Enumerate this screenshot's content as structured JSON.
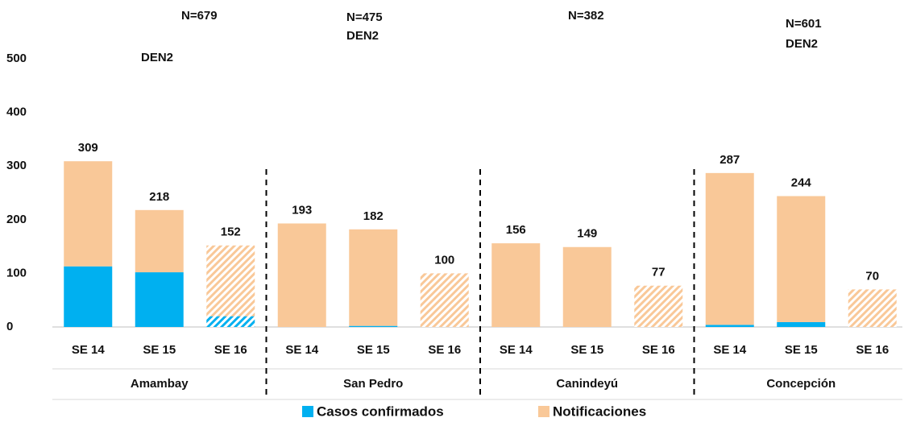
{
  "chart_data": {
    "type": "stacked_bar",
    "categories": [
      "SE 14",
      "SE 15",
      "SE 16",
      "SE 14",
      "SE 15",
      "SE 16",
      "SE 14",
      "SE 15",
      "SE 16",
      "SE 14",
      "SE 15",
      "SE 16"
    ],
    "groups": [
      {
        "name": "Amambay",
        "n": "N=679",
        "note": "DEN2"
      },
      {
        "name": "San Pedro",
        "n": "N=475",
        "note": "DEN2"
      },
      {
        "name": "Canindeyú",
        "n": "N=382"
      },
      {
        "name": "Concepción",
        "n": "N=601",
        "note": "DEN2"
      }
    ],
    "series": [
      {
        "name": "Casos confirmados",
        "color": "#00b0f0",
        "values": [
          113,
          102,
          20,
          0,
          2,
          0,
          0,
          0,
          0,
          4,
          9,
          0
        ]
      },
      {
        "name": "Notificaciones",
        "color": "#f9c898",
        "values": [
          196,
          116,
          132,
          193,
          180,
          100,
          156,
          149,
          77,
          283,
          235,
          70
        ]
      }
    ],
    "totals": [
      309,
      218,
      152,
      193,
      182,
      100,
      156,
      149,
      77,
      287,
      244,
      70
    ],
    "hatched": [
      false,
      false,
      true,
      false,
      false,
      true,
      false,
      false,
      true,
      false,
      false,
      true
    ],
    "ylim": [
      0,
      500
    ],
    "yticks": [
      0,
      100,
      200,
      300,
      400,
      500
    ],
    "grid": false,
    "legend": "bottom"
  }
}
